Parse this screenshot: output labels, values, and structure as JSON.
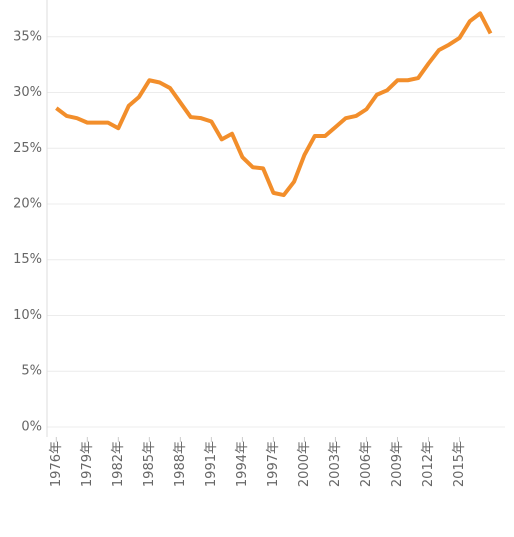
{
  "chart_data": {
    "type": "line",
    "x": [
      1976,
      1977,
      1978,
      1979,
      1980,
      1981,
      1982,
      1983,
      1984,
      1985,
      1986,
      1987,
      1988,
      1989,
      1990,
      1991,
      1992,
      1993,
      1994,
      1995,
      1996,
      1997,
      1998,
      1999,
      2000,
      2001,
      2002,
      2003,
      2004,
      2005,
      2006,
      2007,
      2008,
      2009,
      2010,
      2011,
      2012,
      2013,
      2014,
      2015,
      2016,
      2017,
      2018
    ],
    "values": [
      28.6,
      27.9,
      27.7,
      27.3,
      27.3,
      27.3,
      26.8,
      28.8,
      29.6,
      31.1,
      30.9,
      30.4,
      29.1,
      27.8,
      27.7,
      27.4,
      25.8,
      26.3,
      24.2,
      23.3,
      23.2,
      21.0,
      20.8,
      22.0,
      24.4,
      26.1,
      26.1,
      26.9,
      27.7,
      27.9,
      28.5,
      29.8,
      30.2,
      31.1,
      31.1,
      31.3,
      32.6,
      33.8,
      34.3,
      34.9,
      36.4,
      37.1,
      35.3
    ],
    "color": "#f28e2b",
    "xlim": [
      1975.1,
      2019.4
    ],
    "xticks": [
      {
        "value": 1976,
        "label": "1976年"
      },
      {
        "value": 1979,
        "label": "1979年"
      },
      {
        "value": 1982,
        "label": "1982年"
      },
      {
        "value": 1985,
        "label": "1985年"
      },
      {
        "value": 1988,
        "label": "1988年"
      },
      {
        "value": 1991,
        "label": "1991年"
      },
      {
        "value": 1994,
        "label": "1994年"
      },
      {
        "value": 1997,
        "label": "1997年"
      },
      {
        "value": 2000,
        "label": "2000年"
      },
      {
        "value": 2003,
        "label": "2003年"
      },
      {
        "value": 2006,
        "label": "2006年"
      },
      {
        "value": 2009,
        "label": "2009年"
      },
      {
        "value": 2012,
        "label": "2012年"
      },
      {
        "value": 2015,
        "label": "2015年"
      }
    ],
    "ylim": [
      -0.9,
      38.3
    ],
    "yticks": [
      {
        "value": 0,
        "label": "0%"
      },
      {
        "value": 5,
        "label": "5%"
      },
      {
        "value": 10,
        "label": "10%"
      },
      {
        "value": 15,
        "label": "15%"
      },
      {
        "value": 20,
        "label": "20%"
      },
      {
        "value": 25,
        "label": "25%"
      },
      {
        "value": 30,
        "label": "30%"
      },
      {
        "value": 35,
        "label": "35%"
      }
    ],
    "grid": true
  }
}
